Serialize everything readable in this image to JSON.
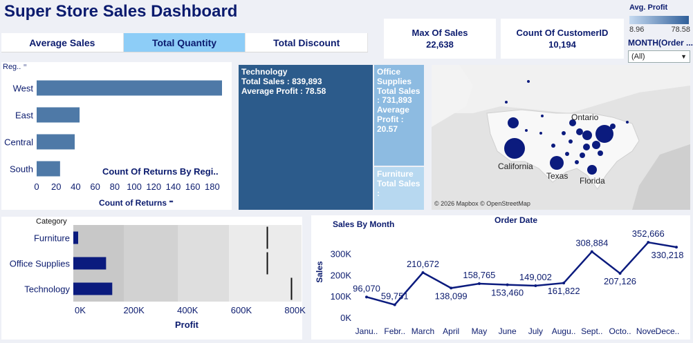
{
  "title": "Super Store Sales Dashboard",
  "tabs": [
    "Average Sales",
    "Total Quantity",
    "Total Discount"
  ],
  "active_tab": 1,
  "kpis": {
    "max_sales_label": "Max Of Sales",
    "max_sales_value": "22,638",
    "customer_label": "Count Of CustomerID",
    "customer_value": "10,194"
  },
  "legend": {
    "title": "Avg. Profit",
    "min": "8.96",
    "max": "78.58"
  },
  "filter": {
    "label": "MONTH(Order ...",
    "value": "(All)"
  },
  "treemap": {
    "tiles": [
      {
        "name": "Technology",
        "sales": "Total Sales : 839,893",
        "profit": "Average Profit : 78.58",
        "color": "#2c5b8b"
      },
      {
        "name": "Office Supplies",
        "sales": "Total Sales : 731,893",
        "profit": "Average Profit : 20.57",
        "color": "#8dbbe1"
      },
      {
        "name": "Furniture",
        "sales": "Total Sales :",
        "profit": "",
        "color": "#b7d8f0"
      }
    ]
  },
  "map": {
    "labels": [
      "Ontario",
      "California",
      "Texas",
      "Florida"
    ],
    "credit": "© 2026 Mapbox © OpenStreetMap"
  },
  "chart_data": [
    {
      "type": "bar",
      "title": "Count Of Returns By Regi..",
      "xlabel": "Count of Returns",
      "ylabel": "Reg..",
      "categories": [
        "West",
        "East",
        "Central",
        "South"
      ],
      "values": [
        190,
        44,
        39,
        24
      ],
      "xlim": [
        0,
        190
      ],
      "ticks": [
        "0",
        "20",
        "40",
        "60",
        "80",
        "100",
        "120",
        "140",
        "160",
        "180"
      ],
      "color": "#4e79a7"
    },
    {
      "type": "bar",
      "title": "",
      "xlabel": "Profit",
      "ylabel": "Category",
      "categories": [
        "Furniture",
        "Office Supplies",
        "Technology"
      ],
      "values": [
        18000,
        122000,
        145000
      ],
      "xlim": [
        0,
        850000
      ],
      "ticks": [
        "0K",
        "200K",
        "400K",
        "600K",
        "800K"
      ],
      "color": "#0b1b7e"
    },
    {
      "type": "line",
      "title": "Sales By Month",
      "xlabel": "Order Date",
      "ylabel": "Sales",
      "categories": [
        "Janu..",
        "Febr..",
        "March",
        "April",
        "May",
        "June",
        "July",
        "Augu..",
        "Sept..",
        "Octo..",
        "Nove..",
        "Dece.."
      ],
      "values": [
        96070,
        59751,
        210672,
        138099,
        158765,
        153460,
        149002,
        161822,
        308884,
        207126,
        352666,
        330218
      ],
      "labels": [
        "96,070",
        "59,751",
        "210,672",
        "138,099",
        "158,765",
        "153,460",
        "149,002",
        "161,822",
        "308,884",
        "207,126",
        "352,666",
        "330,218"
      ],
      "ylim": [
        0,
        350000
      ],
      "ticks": [
        "0K",
        "100K",
        "200K",
        "300K"
      ],
      "color": "#0b1b7e"
    }
  ]
}
